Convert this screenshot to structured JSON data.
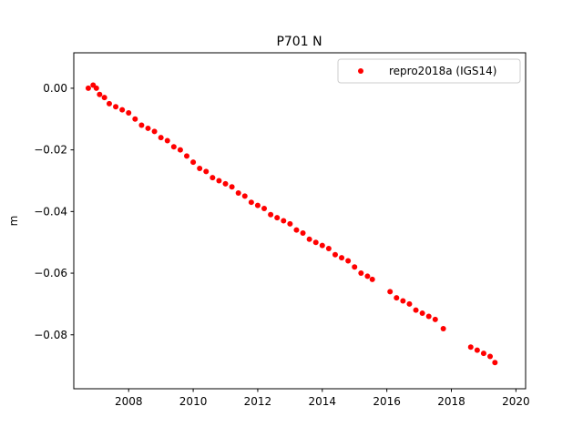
{
  "chart_data": {
    "type": "scatter",
    "title": "P701 N",
    "xlabel": "",
    "ylabel": "m",
    "xlim": [
      2006.3,
      2020.3
    ],
    "ylim": [
      -0.0975,
      0.0115
    ],
    "x_ticks": [
      2008,
      2010,
      2012,
      2014,
      2016,
      2018,
      2020
    ],
    "x_tick_labels": [
      "2008",
      "2010",
      "2012",
      "2014",
      "2016",
      "2018",
      "2020"
    ],
    "y_ticks": [
      0.0,
      -0.02,
      -0.04,
      -0.06,
      -0.08
    ],
    "y_tick_labels": [
      "0.00",
      "−0.02",
      "−0.04",
      "−0.06",
      "−0.08"
    ],
    "grid": false,
    "legend_position": "top-right",
    "color": "#ff0000",
    "series": [
      {
        "name": "repro2018a (IGS14)",
        "x": [
          2006.75,
          2006.9,
          2007.0,
          2007.1,
          2007.25,
          2007.4,
          2007.6,
          2007.8,
          2008.0,
          2008.2,
          2008.4,
          2008.6,
          2008.8,
          2009.0,
          2009.2,
          2009.4,
          2009.6,
          2009.8,
          2010.0,
          2010.2,
          2010.4,
          2010.6,
          2010.8,
          2011.0,
          2011.2,
          2011.4,
          2011.6,
          2011.8,
          2012.0,
          2012.2,
          2012.4,
          2012.6,
          2012.8,
          2013.0,
          2013.2,
          2013.4,
          2013.6,
          2013.8,
          2014.0,
          2014.2,
          2014.4,
          2014.6,
          2014.8,
          2015.0,
          2015.2,
          2015.4,
          2015.55,
          2016.1,
          2016.3,
          2016.5,
          2016.7,
          2016.9,
          2017.1,
          2017.3,
          2017.5,
          2017.75,
          2018.6,
          2018.8,
          2019.0,
          2019.2,
          2019.35
        ],
        "y": [
          0.0,
          0.001,
          0.0,
          -0.002,
          -0.003,
          -0.005,
          -0.006,
          -0.007,
          -0.008,
          -0.01,
          -0.012,
          -0.013,
          -0.014,
          -0.016,
          -0.017,
          -0.019,
          -0.02,
          -0.022,
          -0.024,
          -0.026,
          -0.027,
          -0.029,
          -0.03,
          -0.031,
          -0.032,
          -0.034,
          -0.035,
          -0.037,
          -0.038,
          -0.039,
          -0.041,
          -0.042,
          -0.043,
          -0.044,
          -0.046,
          -0.047,
          -0.049,
          -0.05,
          -0.051,
          -0.052,
          -0.054,
          -0.055,
          -0.056,
          -0.058,
          -0.06,
          -0.061,
          -0.062,
          -0.066,
          -0.068,
          -0.069,
          -0.07,
          -0.072,
          -0.073,
          -0.074,
          -0.075,
          -0.078,
          -0.084,
          -0.085,
          -0.086,
          -0.087,
          -0.089
        ]
      }
    ]
  }
}
